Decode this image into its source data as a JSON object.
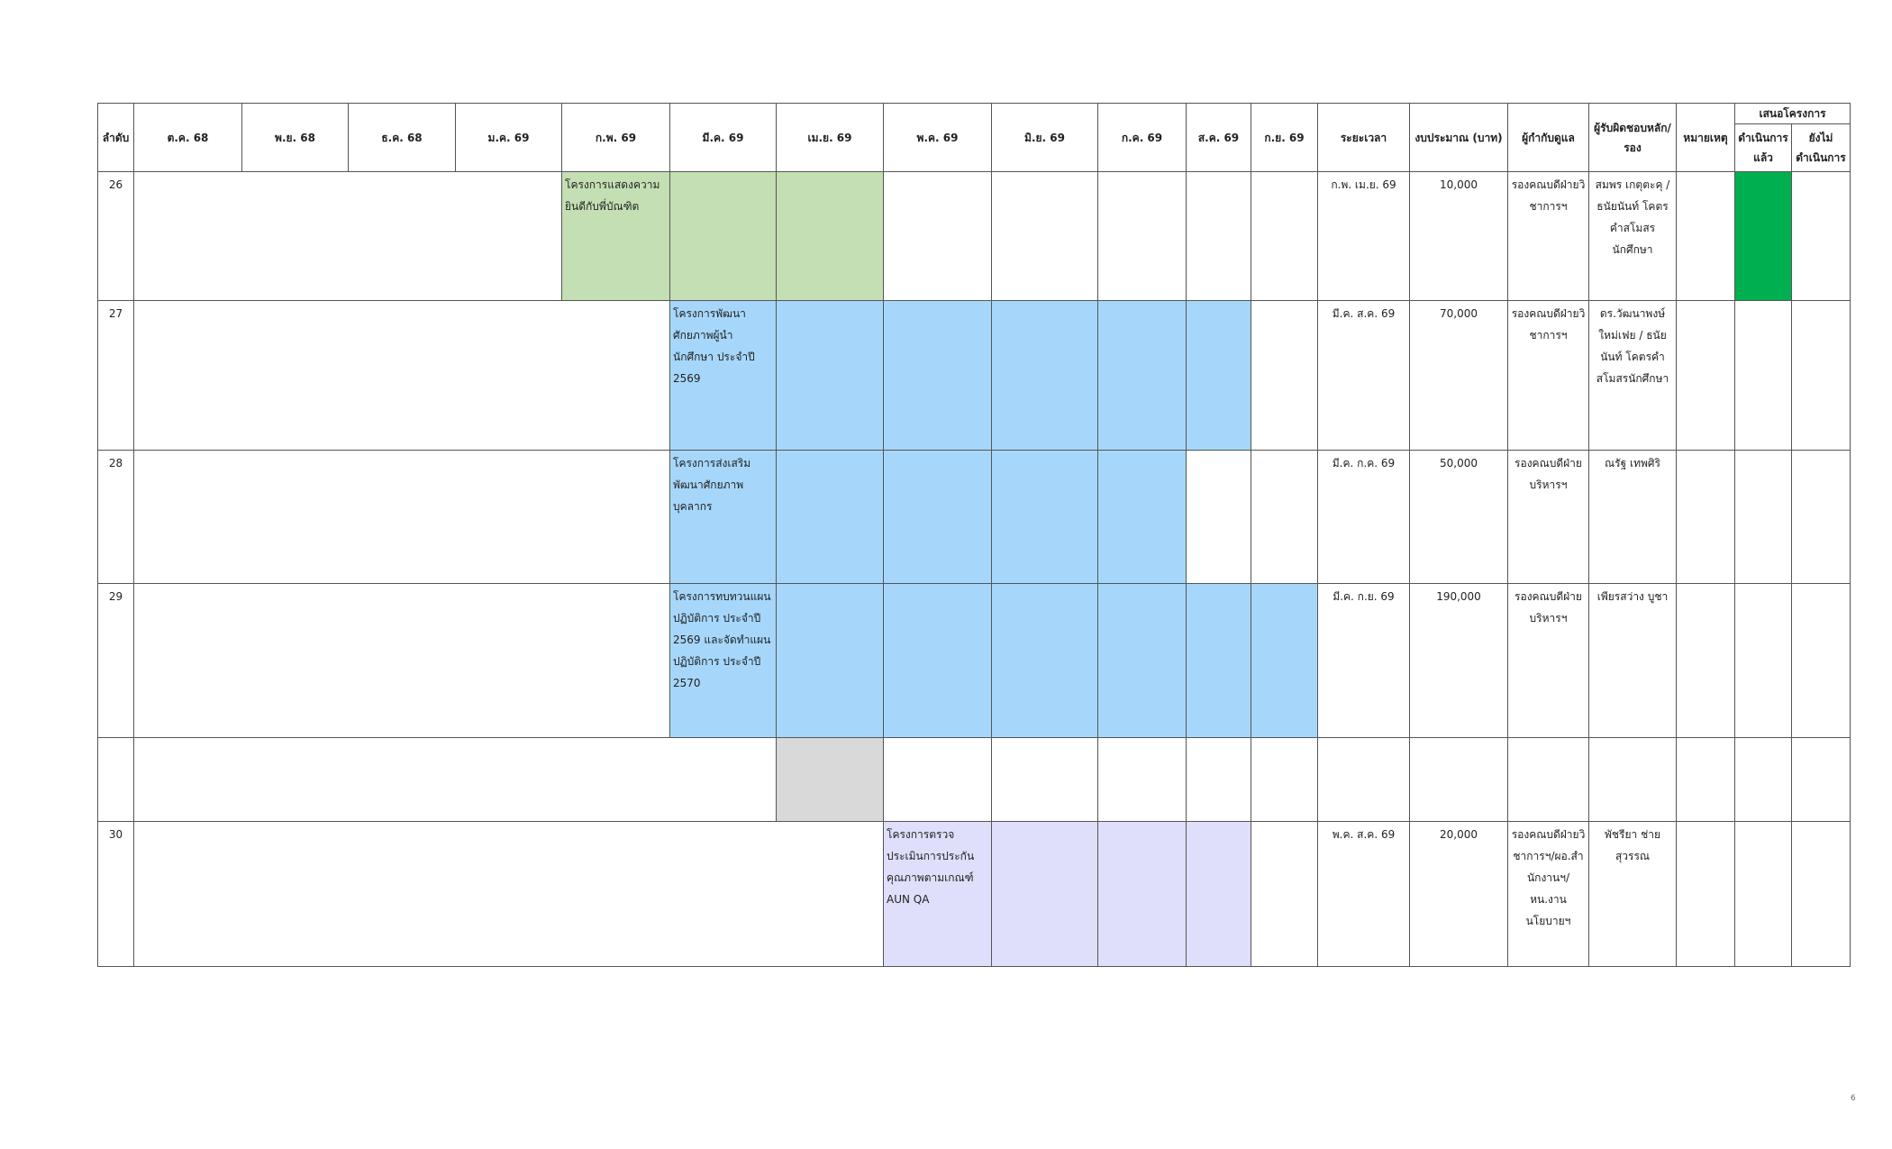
{
  "header": {
    "no": "ลำดับ",
    "months": [
      "ต.ค. 68",
      "พ.ย. 68",
      "ธ.ค. 68",
      "ม.ค. 69",
      "ก.พ. 69",
      "มี.ค. 69",
      "เม.ย. 69",
      "พ.ค. 69",
      "มิ.ย. 69",
      "ก.ค. 69",
      "ส.ค. 69",
      "ก.ย. 69"
    ],
    "period": "ระยะเวลา",
    "budget": "งบประมาณ (บาท)",
    "supervisor": "ผู้กำกับดูแล",
    "responsible": "ผู้รับผิดชอบหลัก/รอง",
    "remark": "หมายเหตุ",
    "proposal": "เสนอโครงการ",
    "done": "ดำเนินการแล้ว",
    "not_done": "ยังไม่ดำเนินการ"
  },
  "rows": [
    {
      "no": "26",
      "timeline": [
        null,
        null,
        null,
        null,
        "#c4dfb3",
        "#c4dfb3",
        "#c4dfb3",
        null,
        null,
        null,
        null,
        null
      ],
      "project": "โครงการแสดงความยินดีกับพี่บัณฑิต",
      "period": "ก.พ. เม.ย. 69",
      "budget": "10,000",
      "supervisor": "รองคณบดีฝ่ายวิชาการฯ",
      "responsible": "สมพร เกตุตะคุ / ธนัยนันท์ โคตรคำสโมสรนักศึกษา",
      "done_color": "#00b050"
    },
    {
      "no": "27",
      "timeline": [
        null,
        null,
        null,
        null,
        null,
        "#a6d7fa",
        "#a6d7fa",
        "#a6d7fa",
        "#a6d7fa",
        "#a6d7fa",
        "#a6d7fa",
        null
      ],
      "project": "โครงการพัฒนาศักยภาพผู้นำนักศึกษา ประจำปี 2569",
      "period": "มี.ค. ส.ค. 69",
      "budget": "70,000",
      "supervisor": "รองคณบดีฝ่ายวิชาการฯ",
      "responsible": "ดร.วัฒนาพงษ์ ใหม่เฟย / ธนัยนันท์ โคตรคำสโมสรนักศึกษา"
    },
    {
      "no": "28",
      "timeline": [
        null,
        null,
        null,
        null,
        null,
        "#a6d7fa",
        "#a6d7fa",
        "#a6d7fa",
        "#a6d7fa",
        "#a6d7fa",
        null,
        null
      ],
      "project": "โครงการส่งเสริมพัฒนาศักยภาพบุคลากร",
      "period": "มี.ค. ก.ค. 69",
      "budget": "50,000",
      "supervisor": "รองคณบดีฝ่ายบริหารฯ",
      "responsible": "ณรัฐ เทพศิริ"
    },
    {
      "no": "29",
      "timeline": [
        null,
        null,
        null,
        null,
        null,
        "#a6d7fa",
        "#a6d7fa",
        "#a6d7fa",
        "#a6d7fa",
        "#a6d7fa",
        "#a6d7fa",
        "#a6d7fa"
      ],
      "project": "โครงการทบทวนแผนปฏิบัติการ ประจำปี 2569 และจัดทำแผนปฏิบัติการ ประจำปี 2570",
      "period": "มี.ค. ก.ย. 69",
      "budget": "190,000",
      "supervisor": "รองคณบดีฝ่ายบริหารฯ",
      "responsible": "เพียรสว่าง บูชา"
    },
    {
      "timeline": [
        null,
        null,
        null,
        null,
        null,
        null,
        "#d9d9d9",
        null,
        null,
        null,
        null,
        null
      ]
    },
    {
      "no": "30",
      "timeline": [
        null,
        null,
        null,
        null,
        null,
        null,
        null,
        "#dfdffb",
        "#dfdffb",
        "#dfdffb",
        "#dfdffb",
        null
      ],
      "project": "โครงการตรวจประเมินการประกันคุณภาพตามเกณฑ์ AUN QA",
      "period": "พ.ค. ส.ค. 69",
      "budget": "20,000",
      "supervisor": "รองคณบดีฝ่ายวิชาการฯ/ผอ.สำนักงานฯ/หน.งานนโยบายฯ",
      "responsible": "พัชรียา ช่ายสุวรรณ"
    }
  ],
  "page_number": "6"
}
